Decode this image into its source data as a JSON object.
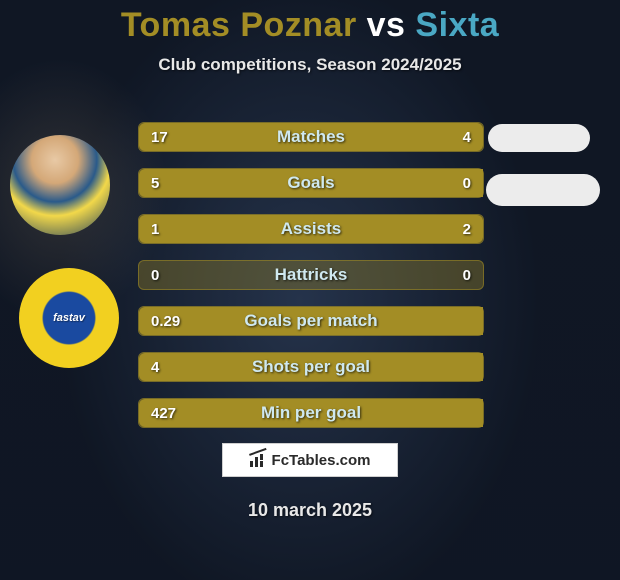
{
  "title": {
    "player1": "Tomas Poznar",
    "vs": "vs",
    "player2": "Sixta",
    "player1_color": "#a38d25",
    "vs_color": "#ffffff",
    "player2_color": "#4aa8c4",
    "fontsize": 34
  },
  "subtitle": "Club competitions, Season 2024/2025",
  "club_text": "fastav",
  "stats": {
    "type": "comparison-bars",
    "bar_bg_color": "rgba(163,141,37,0.35)",
    "bar_fill_color": "#a38d25",
    "label_color": "#cfe8ef",
    "value_color": "#ffffff",
    "label_fontsize": 17,
    "value_fontsize": 15,
    "rows": [
      {
        "label": "Matches",
        "left": "17",
        "right": "4",
        "left_pct": 81,
        "right_pct": 19
      },
      {
        "label": "Goals",
        "left": "5",
        "right": "0",
        "left_pct": 100,
        "right_pct": 0
      },
      {
        "label": "Assists",
        "left": "1",
        "right": "2",
        "left_pct": 33,
        "right_pct": 67
      },
      {
        "label": "Hattricks",
        "left": "0",
        "right": "0",
        "left_pct": 0,
        "right_pct": 0
      },
      {
        "label": "Goals per match",
        "left": "0.29",
        "right": "",
        "left_pct": 100,
        "right_pct": 0
      },
      {
        "label": "Shots per goal",
        "left": "4",
        "right": "",
        "left_pct": 100,
        "right_pct": 0
      },
      {
        "label": "Min per goal",
        "left": "427",
        "right": "",
        "left_pct": 100,
        "right_pct": 0
      }
    ]
  },
  "watermark": "FcTables.com",
  "date": "10 march 2025",
  "colors": {
    "page_bg": "#1a2535",
    "pill_bg": "#ececec",
    "logo_box_bg": "#ffffff",
    "logo_box_border": "#cfcfcf",
    "text_light": "#e8e8e8"
  }
}
